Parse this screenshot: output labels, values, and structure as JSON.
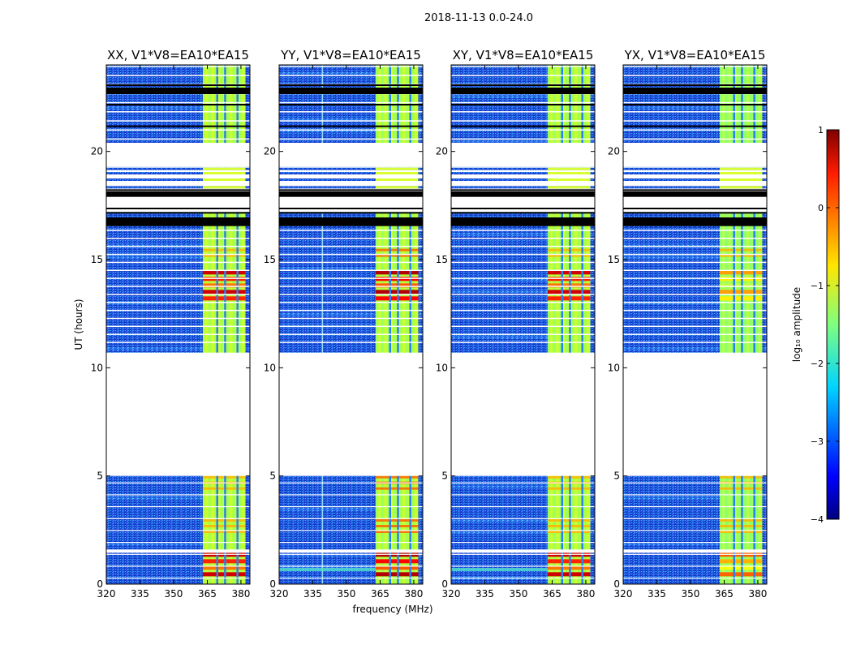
{
  "figure": {
    "suptitle": "2018-11-13 0.0-24.0"
  },
  "chart_data": {
    "type": "heatmap",
    "panels": [
      {
        "title": "XX, V1*V8=EA10*EA15",
        "pol": "XX"
      },
      {
        "title": "YY, V1*V8=EA10*EA15",
        "pol": "YY"
      },
      {
        "title": "XY, V1*V8=EA10*EA15",
        "pol": "XY"
      },
      {
        "title": "YX, V1*V8=EA10*EA15",
        "pol": "YX"
      }
    ],
    "xlabel": "frequency (MHz)",
    "ylabel": "UT (hours)",
    "xlim": [
      320,
      384
    ],
    "ylim": [
      0,
      24
    ],
    "xticks": [
      320,
      335,
      350,
      365,
      380
    ],
    "yticks": [
      0,
      5,
      10,
      15,
      20
    ],
    "xtick_labels": [
      "320",
      "335",
      "350",
      "365",
      "380"
    ],
    "ytick_labels": [
      "0",
      "5",
      "10",
      "15",
      "20"
    ],
    "colorbar": {
      "label": "log₁₀ amplitude",
      "range": [
        -4,
        1
      ],
      "ticks": [
        1,
        0,
        -1,
        -2,
        -3,
        -4
      ],
      "tick_labels": [
        "1",
        "0",
        "−1",
        "−2",
        "−3",
        "−4"
      ],
      "colormap": "jet"
    },
    "data_gaps_hours": [
      [
        5.0,
        10.7
      ],
      [
        19.3,
        20.4
      ],
      [
        1.45,
        1.6
      ]
    ],
    "flagged_black_bands_hours": [
      [
        16.55,
        16.95
      ],
      [
        17.9,
        18.1
      ],
      [
        22.65,
        22.95
      ]
    ],
    "bright_band_mhz": [
      363,
      382
    ],
    "bright_band_channel_gaps_mhz": [
      369,
      372.5,
      378
    ],
    "strong_emission_hours": [
      [
        0.0,
        1.45
      ],
      [
        13.0,
        14.5
      ]
    ]
  }
}
